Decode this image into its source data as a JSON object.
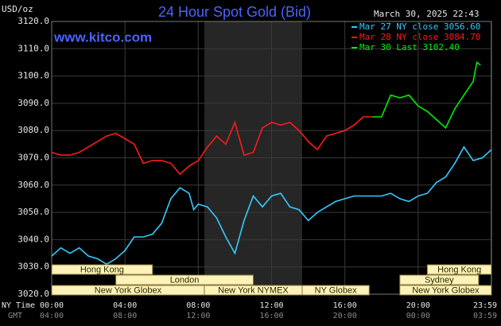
{
  "chart_data": {
    "type": "line",
    "title": "24 Hour Spot Gold (Bid)",
    "unit_label": "USD/oz",
    "timestamp": "March 30, 2025 22:43",
    "site": "www.kitco.com",
    "x_row_labels": [
      "NY Time",
      "GMT"
    ],
    "xlim": [
      0,
      24
    ],
    "xticks": [
      {
        "value": 0,
        "label": "00:00"
      },
      {
        "value": 4,
        "label": "04:00"
      },
      {
        "value": 8,
        "label": "08:00"
      },
      {
        "value": 12,
        "label": "12:00"
      },
      {
        "value": 16,
        "label": "16:00"
      },
      {
        "value": 20,
        "label": "20:00"
      },
      {
        "value": 23.98,
        "label": "23:59"
      }
    ],
    "gmt_labels": [
      "04:00",
      "08:00",
      "12:00",
      "16:00",
      "20:00",
      "00:00",
      "03:59"
    ],
    "ylim": [
      3020,
      3120
    ],
    "yticks": [
      {
        "value": 3020,
        "label": "3020.0"
      },
      {
        "value": 3030,
        "label": "3030.0"
      },
      {
        "value": 3040,
        "label": "3040.0"
      },
      {
        "value": 3050,
        "label": "3050.0"
      },
      {
        "value": 3060,
        "label": "3060.0"
      },
      {
        "value": 3070,
        "label": "3070.0"
      },
      {
        "value": 3080,
        "label": "3080.0"
      },
      {
        "value": 3090,
        "label": "3090.0"
      },
      {
        "value": 3100,
        "label": "3100.0"
      },
      {
        "value": 3110,
        "label": "3110.0"
      },
      {
        "value": 3120,
        "label": "3120.0"
      }
    ],
    "grid": true,
    "session_rows": [
      [
        {
          "label": "Hong Kong",
          "start": 0,
          "end": 5.5
        },
        {
          "label": "Hong Kong",
          "start": 20.5,
          "end": 24
        }
      ],
      [
        {
          "label": "London",
          "start": 3.5,
          "end": 11
        },
        {
          "label": "Sydney",
          "start": 19,
          "end": 23.3
        }
      ],
      [
        {
          "label": "New York Globex",
          "start": 0,
          "end": 8.33
        },
        {
          "label": "New York NYMEX",
          "start": 8.33,
          "end": 13.67,
          "shaded": true
        },
        {
          "label": "NY Globex",
          "start": 13.67,
          "end": 17.33
        },
        {
          "label": "New York Globex",
          "start": 19,
          "end": 24
        }
      ]
    ],
    "series": [
      {
        "name": "Mar 27 NY close 3056.60",
        "color": "#33ccff",
        "x": [
          0,
          0.5,
          1,
          1.5,
          2,
          2.5,
          3,
          3.5,
          4,
          4.5,
          5,
          5.5,
          6,
          6.5,
          7,
          7.5,
          7.75,
          8,
          8.5,
          9,
          9.5,
          10,
          10.5,
          11,
          11.5,
          12,
          12.5,
          13,
          13.5,
          14,
          14.5,
          15,
          15.5,
          16,
          16.5,
          17,
          17.5,
          18,
          18.5,
          19,
          19.5,
          20,
          20.5,
          21,
          21.5,
          22,
          22.5,
          23,
          23.5,
          24
        ],
        "values": [
          3034,
          3037,
          3035,
          3037,
          3034,
          3033,
          3031,
          3033,
          3036,
          3041,
          3041,
          3042,
          3046,
          3055,
          3059,
          3057,
          3051,
          3053,
          3052,
          3048,
          3041,
          3035,
          3047,
          3056,
          3052,
          3056,
          3057,
          3052,
          3051,
          3047,
          3050,
          3052,
          3054,
          3055,
          3056,
          3056,
          3056,
          3056,
          3057,
          3055,
          3054,
          3056,
          3057,
          3061,
          3063,
          3068,
          3074,
          3069,
          3070,
          3073
        ]
      },
      {
        "name": "Mar 28 NY close 3084.70",
        "color": "#ff1a1a",
        "x": [
          0,
          0.5,
          1,
          1.5,
          2,
          2.5,
          3,
          3.5,
          4,
          4.5,
          5,
          5.5,
          6,
          6.5,
          7,
          7.5,
          8,
          8.5,
          9,
          9.5,
          10,
          10.5,
          11,
          11.5,
          12,
          12.5,
          13,
          13.5,
          14,
          14.5,
          15,
          15.5,
          16,
          16.5,
          17,
          17.5
        ],
        "values": [
          3072,
          3071,
          3071,
          3072,
          3074,
          3076,
          3078,
          3079,
          3077,
          3075,
          3068,
          3069,
          3069,
          3068,
          3064,
          3067,
          3069,
          3074,
          3078,
          3075,
          3083,
          3071,
          3072,
          3081,
          3083,
          3082,
          3083,
          3080,
          3076,
          3073,
          3078,
          3079,
          3080,
          3082,
          3085,
          3085
        ]
      },
      {
        "name": "Mar 30 Last 3102.40",
        "color": "#00ee00",
        "x": [
          17.5,
          18,
          18.5,
          19,
          19.5,
          20,
          20.5,
          21,
          21.5,
          22,
          22.5,
          23,
          23.2,
          23.4
        ],
        "values": [
          3085,
          3085,
          3093,
          3092,
          3093,
          3089,
          3087,
          3084,
          3081,
          3088,
          3093,
          3098,
          3105,
          3104
        ]
      }
    ]
  }
}
